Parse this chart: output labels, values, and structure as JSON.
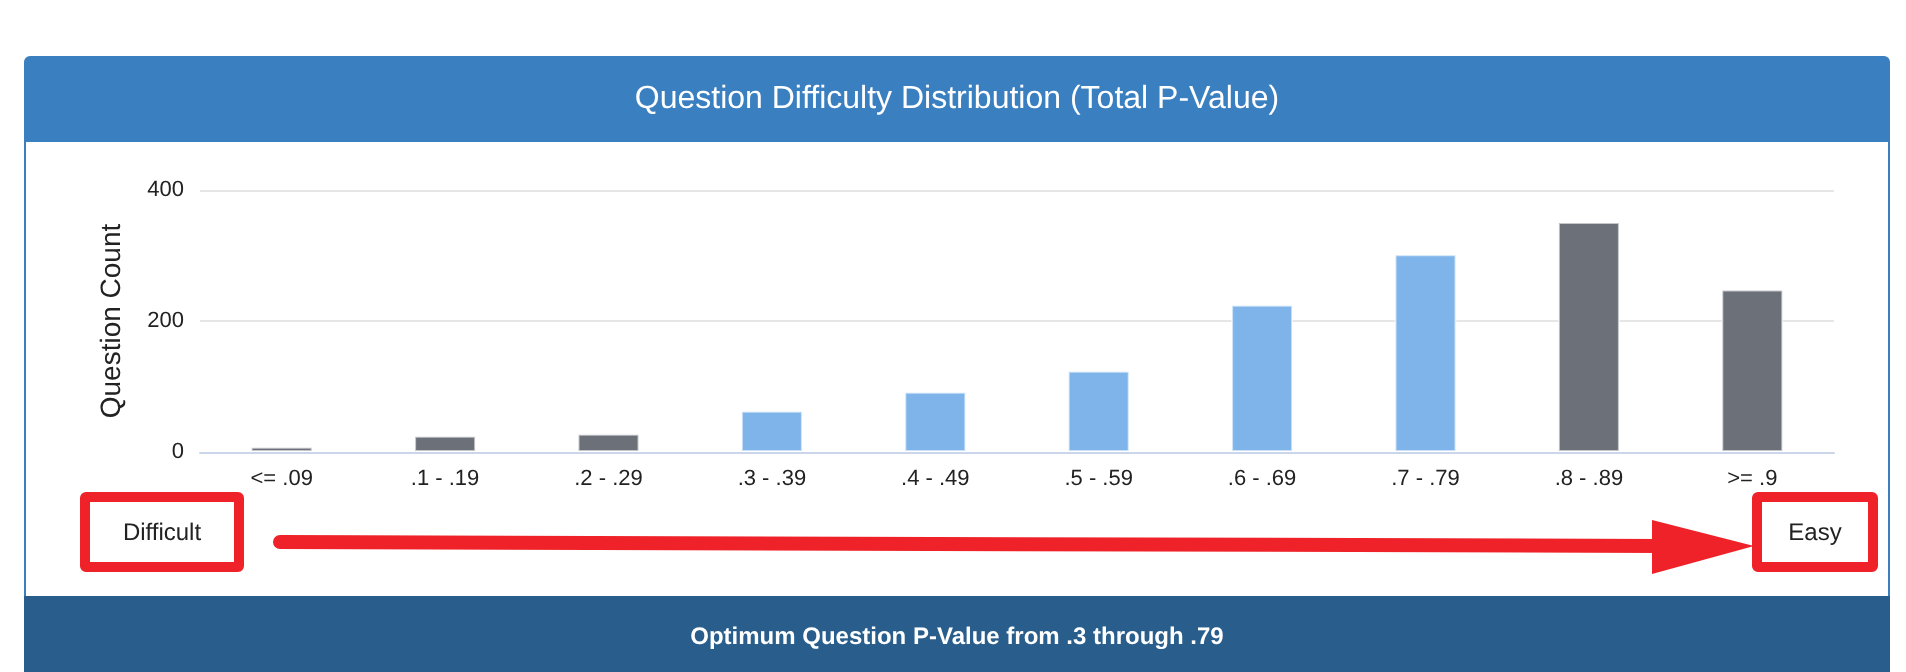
{
  "chart_data": {
    "type": "bar",
    "title": "Question Difficulty Distribution (Total P-Value)",
    "ylabel": "Question Count",
    "categories": [
      "<= .09",
      ".1 - .19",
      ".2 - .29",
      ".3 - .39",
      ".4 - .49",
      ".5 - .59",
      ".6 - .69",
      ".7 - .79",
      ".8 - .89",
      ">= .9"
    ],
    "values": [
      8,
      25,
      28,
      63,
      92,
      124,
      225,
      302,
      351,
      248
    ],
    "colors": [
      "#6c7079",
      "#6c7079",
      "#6c7079",
      "#7eb4ea",
      "#7eb4ea",
      "#7eb4ea",
      "#7eb4ea",
      "#7eb4ea",
      "#6c7079",
      "#6c7079"
    ],
    "ylim": [
      0,
      400
    ],
    "yticks": [
      0,
      200,
      400
    ],
    "grid": "y",
    "annotations": [
      "Difficult",
      "Easy",
      "Optimum Question P-Value from .3 through .79"
    ]
  }
}
